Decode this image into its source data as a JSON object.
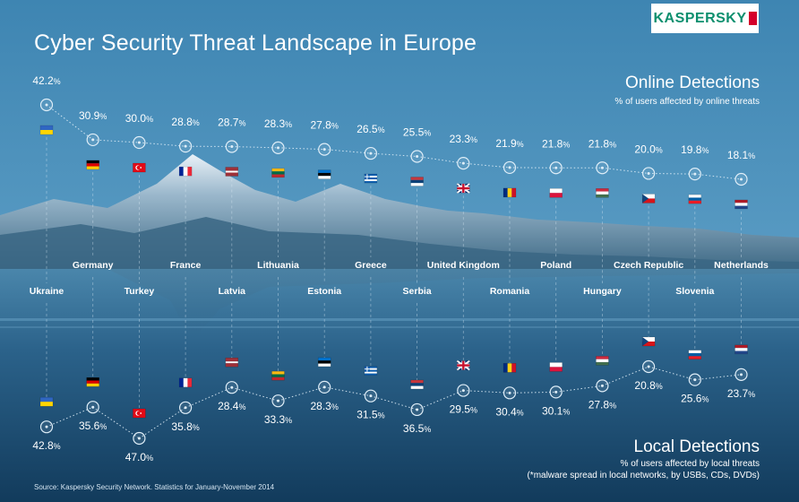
{
  "title": "Cyber Security Threat Landscape in Europe",
  "logo": "KASPERSKY",
  "source": "Source: Kaspersky Security Network. Statistics for January-November 2014",
  "online": {
    "title": "Online Detections",
    "subtitle": "% of users affected by online threats"
  },
  "local": {
    "title": "Local Detections",
    "subtitle": "% of users affected by local threats",
    "subtitle2": "(*malware spread in local networks, by USBs, CDs, DVDs)"
  },
  "colors": {
    "text": "#ffffff",
    "marker": "#dfeef8",
    "dotted_line": "#dfeef8",
    "logo_green": "#0c8f6e"
  },
  "chart_data": [
    {
      "type": "line",
      "title": "Online Detections",
      "series": [
        {
          "name": "% of users affected by online threats",
          "categories": [
            "Ukraine",
            "Germany",
            "Turkey",
            "France",
            "Latvia",
            "Lithuania",
            "Estonia",
            "Greece",
            "Serbia",
            "United Kingdom",
            "Romania",
            "Poland",
            "Hungary",
            "Czech Republic",
            "Slovenia",
            "Netherlands"
          ],
          "values": [
            42.2,
            30.9,
            30.0,
            28.8,
            28.7,
            28.3,
            27.8,
            26.5,
            25.5,
            23.3,
            21.9,
            21.8,
            21.8,
            20.0,
            19.8,
            18.1
          ]
        }
      ],
      "labels": [
        "42.2%",
        "30.9%",
        "30.0%",
        "28.8%",
        "28.7%",
        "28.3%",
        "27.8%",
        "26.5%",
        "25.5%",
        "23.3%",
        "21.9%",
        "21.8%",
        "21.8%",
        "20.0%",
        "19.8%",
        "18.1%"
      ]
    },
    {
      "type": "line",
      "title": "Local Detections",
      "series": [
        {
          "name": "% of users affected by local threats",
          "categories": [
            "Ukraine",
            "Germany",
            "Turkey",
            "France",
            "Latvia",
            "Lithuania",
            "Estonia",
            "Greece",
            "Serbia",
            "United Kingdom",
            "Romania",
            "Poland",
            "Hungary",
            "Czech Republic",
            "Slovenia",
            "Netherlands"
          ],
          "values": [
            42.8,
            35.6,
            47.0,
            35.8,
            28.4,
            33.3,
            28.3,
            31.5,
            36.5,
            29.5,
            30.4,
            30.1,
            27.8,
            20.8,
            25.6,
            23.7
          ]
        }
      ],
      "labels": [
        "42.8%",
        "35.6%",
        "47.0%",
        "35.8%",
        "28.4%",
        "33.3%",
        "28.3%",
        "31.5%",
        "36.5%",
        "29.5%",
        "30.4%",
        "30.1%",
        "27.8%",
        "20.8%",
        "25.6%",
        "23.7%"
      ]
    }
  ],
  "countries": [
    {
      "name": "Ukraine",
      "flag": {
        "type": "h",
        "colors": [
          "#2f66c2",
          "#ffd500"
        ]
      }
    },
    {
      "name": "Germany",
      "flag": {
        "type": "h",
        "colors": [
          "#000000",
          "#dd0000",
          "#ffce00"
        ]
      }
    },
    {
      "name": "Turkey",
      "flag": {
        "type": "turkey",
        "colors": [
          "#e30a17",
          "#ffffff"
        ]
      }
    },
    {
      "name": "France",
      "flag": {
        "type": "v",
        "colors": [
          "#002395",
          "#ffffff",
          "#ed2939"
        ]
      }
    },
    {
      "name": "Latvia",
      "flag": {
        "type": "h",
        "colors": [
          "#9e3039",
          "#ffffff",
          "#9e3039"
        ],
        "weights": [
          2,
          1,
          2
        ]
      }
    },
    {
      "name": "Lithuania",
      "flag": {
        "type": "h",
        "colors": [
          "#fdb913",
          "#006a44",
          "#c1272d"
        ]
      }
    },
    {
      "name": "Estonia",
      "flag": {
        "type": "h",
        "colors": [
          "#0072ce",
          "#000000",
          "#ffffff"
        ]
      }
    },
    {
      "name": "Greece",
      "flag": {
        "type": "greece",
        "colors": [
          "#0d5eaf",
          "#ffffff"
        ]
      }
    },
    {
      "name": "Serbia",
      "flag": {
        "type": "h",
        "colors": [
          "#c6363c",
          "#0c4076",
          "#ffffff"
        ]
      }
    },
    {
      "name": "United Kingdom",
      "flag": {
        "type": "uk",
        "colors": [
          "#012169",
          "#ffffff",
          "#c8102e"
        ]
      }
    },
    {
      "name": "Romania",
      "flag": {
        "type": "v",
        "colors": [
          "#002b7f",
          "#fcd116",
          "#ce1126"
        ]
      }
    },
    {
      "name": "Poland",
      "flag": {
        "type": "h",
        "colors": [
          "#ffffff",
          "#dc143c"
        ]
      }
    },
    {
      "name": "Hungary",
      "flag": {
        "type": "h",
        "colors": [
          "#cd2a3e",
          "#ffffff",
          "#436f4d"
        ]
      }
    },
    {
      "name": "Czech Republic",
      "flag": {
        "type": "czech",
        "colors": [
          "#ffffff",
          "#d7141a",
          "#11457e"
        ]
      }
    },
    {
      "name": "Slovenia",
      "flag": {
        "type": "h",
        "colors": [
          "#ffffff",
          "#005da4",
          "#ed1c24"
        ]
      }
    },
    {
      "name": "Netherlands",
      "flag": {
        "type": "h",
        "colors": [
          "#ae1c28",
          "#ffffff",
          "#21468b"
        ]
      }
    }
  ]
}
